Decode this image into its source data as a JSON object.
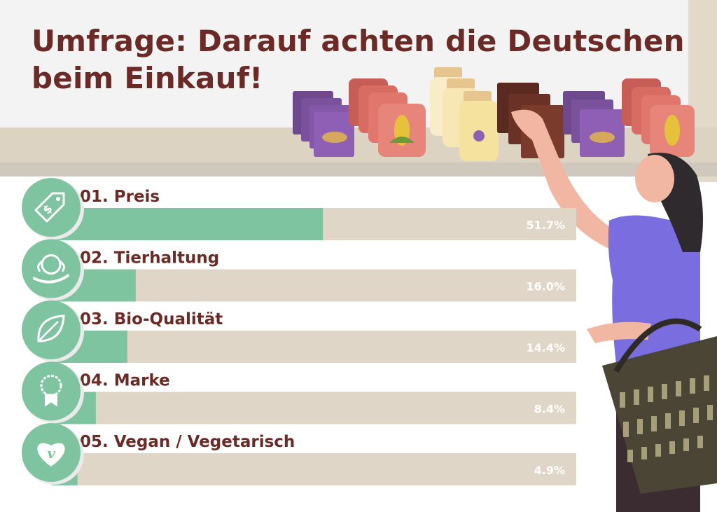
{
  "title": "Umfrage: Darauf achten die Deutschen beim Einkauf!",
  "colors": {
    "title": "#6b2a25",
    "bar_fill": "#7fc4a0",
    "bar_track": "#e0d6c8",
    "shelf": "#dcd4c4",
    "wall": "#f2f2f2"
  },
  "chart_data": {
    "type": "bar",
    "orientation": "horizontal",
    "categories": [
      "01. Preis",
      "02. Tierhaltung",
      "03. Bio-Qualität",
      "04. Marke",
      "05. Vegan / Vegetarisch"
    ],
    "values": [
      51.7,
      16.0,
      14.4,
      8.4,
      4.9
    ],
    "value_labels": [
      "51.7%",
      "16.0%",
      "14.4%",
      "8.4%",
      "4.9%"
    ],
    "icons": [
      "price-tag-icon",
      "dog-in-hand-icon",
      "leaf-icon",
      "medal-icon",
      "vegan-heart-icon"
    ],
    "xlim": [
      0,
      100
    ],
    "grid": false,
    "legend": "none"
  }
}
